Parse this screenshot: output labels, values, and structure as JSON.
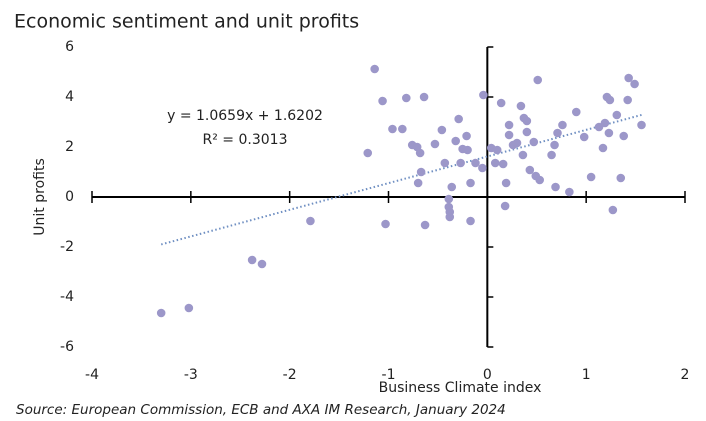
{
  "chart_data": {
    "type": "scatter",
    "title": "Economic sentiment and unit profits",
    "xlabel": "Business Climate index",
    "ylabel": "Unit profits",
    "source": "Source: European Commission, ECB and AXA IM Research, January 2024",
    "color": "#9c97c9",
    "xlim": [
      -4,
      2
    ],
    "xticks": [
      -4,
      -3,
      -2,
      -1,
      0,
      1,
      2
    ],
    "ylim": [
      -6,
      6
    ],
    "yticks": [
      -6,
      -4,
      -2,
      0,
      2,
      4,
      6
    ],
    "trendline": {
      "slope": 1.0659,
      "intercept": 1.6202,
      "color": "#6f8fc2",
      "label": "y = 1.0659x + 1.6202",
      "r2_label": "R² = 0.3013"
    },
    "x": [
      -3.3,
      -3.02,
      -2.38,
      -2.28,
      -1.79,
      -1.21,
      -1.14,
      -1.06,
      -0.96,
      -0.86,
      -0.82,
      -0.64,
      -1.03,
      -0.76,
      -0.71,
      -0.68,
      -0.67,
      -0.7,
      -0.63,
      -0.53,
      -0.46,
      -0.43,
      -0.39,
      -0.39,
      -0.38,
      -0.38,
      -0.36,
      -0.32,
      -0.29,
      -0.27,
      -0.25,
      -0.2,
      -0.21,
      -0.17,
      -0.17,
      -0.12,
      -0.04,
      -0.05,
      0.04,
      0.08,
      0.1,
      0.14,
      0.16,
      0.18,
      0.19,
      0.22,
      0.22,
      0.26,
      0.3,
      0.36,
      0.34,
      0.37,
      0.4,
      0.4,
      0.43,
      0.47,
      0.49,
      0.51,
      0.53,
      0.65,
      0.68,
      0.69,
      0.71,
      0.76,
      0.83,
      0.9,
      0.98,
      1.05,
      1.13,
      1.17,
      1.21,
      1.23,
      1.24,
      1.27,
      1.31,
      1.35,
      1.38,
      1.42,
      1.43,
      1.49,
      1.56,
      1.19
    ],
    "y": [
      -4.64,
      -4.44,
      -2.52,
      -2.68,
      -0.96,
      1.76,
      5.12,
      3.84,
      2.72,
      2.72,
      3.96,
      4.0,
      -1.08,
      2.08,
      2.0,
      1.76,
      1.0,
      0.56,
      -1.12,
      2.12,
      2.68,
      1.36,
      -0.08,
      -0.4,
      -0.6,
      -0.8,
      0.4,
      2.24,
      3.12,
      1.36,
      1.92,
      1.88,
      2.44,
      -0.96,
      0.56,
      1.36,
      4.08,
      1.16,
      1.96,
      1.36,
      1.88,
      3.76,
      1.32,
      -0.36,
      0.56,
      2.88,
      2.48,
      2.08,
      2.16,
      1.68,
      3.64,
      3.16,
      3.04,
      2.6,
      1.08,
      2.2,
      0.84,
      4.68,
      0.68,
      1.68,
      2.08,
      0.4,
      2.56,
      2.88,
      0.2,
      3.4,
      2.4,
      0.8,
      2.8,
      1.96,
      4.0,
      2.56,
      3.88,
      -0.52,
      3.28,
      0.76,
      2.44,
      3.88,
      4.76,
      4.52,
      2.88,
      2.96
    ]
  }
}
